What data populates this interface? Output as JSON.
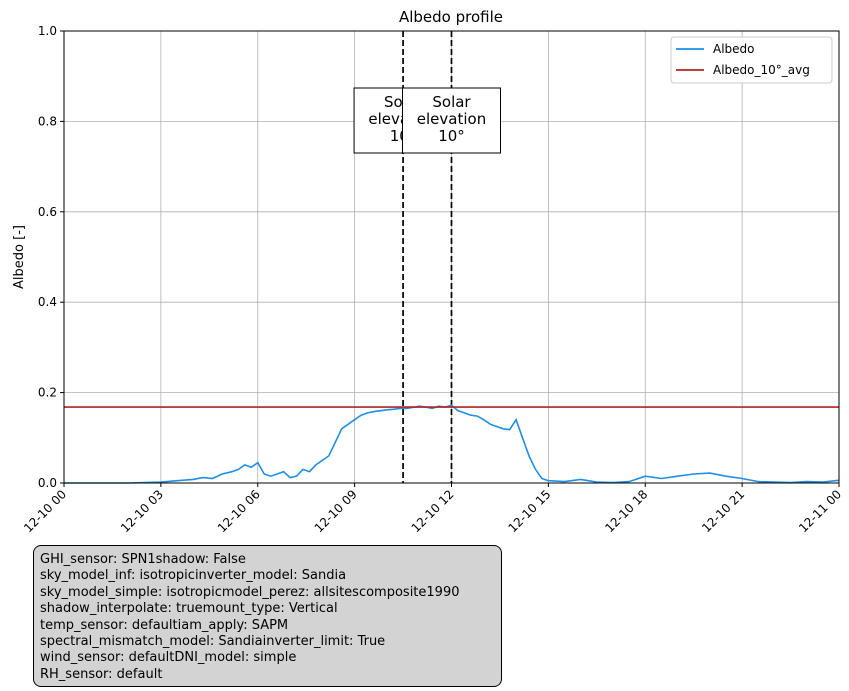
{
  "chart_data": {
    "type": "line",
    "title": "Albedo profile",
    "xlabel": "",
    "ylabel": "Albedo [-]",
    "xlim": [
      "12-10 00",
      "12-11 00"
    ],
    "ylim": [
      0,
      1.0
    ],
    "grid": true,
    "legend_position": "top-right",
    "x_tick_labels": [
      "12-10 00",
      "12-10 03",
      "12-10 06",
      "12-10 09",
      "12-10 12",
      "12-10 15",
      "12-10 18",
      "12-10 21",
      "12-11 00"
    ],
    "y_tick_labels": [
      "0.0",
      "0.2",
      "0.4",
      "0.6",
      "0.8",
      "1.0"
    ],
    "y_ticks": [
      0,
      0.2,
      0.4,
      0.6,
      0.8,
      1.0
    ],
    "series": [
      {
        "name": "Albedo",
        "color": "#1f8fe6",
        "x_hours": [
          0,
          1,
          2,
          3,
          3.5,
          4,
          4.3,
          4.6,
          4.9,
          5.2,
          5.4,
          5.6,
          5.8,
          6.0,
          6.2,
          6.4,
          6.6,
          6.8,
          7.0,
          7.2,
          7.4,
          7.6,
          7.8,
          8.0,
          8.2,
          8.4,
          8.6,
          8.8,
          9.0,
          9.2,
          9.4,
          9.6,
          9.8,
          10.0,
          10.2,
          10.4,
          10.6,
          10.8,
          11.0,
          11.2,
          11.4,
          11.6,
          11.8,
          12.0,
          12.2,
          12.4,
          12.6,
          12.8,
          13.0,
          13.2,
          13.4,
          13.6,
          13.8,
          14.0,
          14.2,
          14.4,
          14.6,
          14.8,
          15.0,
          15.5,
          16,
          16.5,
          17,
          17.5,
          18,
          18.5,
          19,
          19.5,
          20,
          20.5,
          21,
          21.5,
          22,
          22.5,
          23,
          23.5,
          24
        ],
        "values": [
          0.0,
          0.0,
          0.0,
          0.002,
          0.005,
          0.008,
          0.012,
          0.01,
          0.02,
          0.025,
          0.03,
          0.04,
          0.035,
          0.045,
          0.02,
          0.015,
          0.02,
          0.025,
          0.012,
          0.015,
          0.03,
          0.025,
          0.04,
          0.05,
          0.06,
          0.09,
          0.12,
          0.13,
          0.14,
          0.15,
          0.155,
          0.158,
          0.16,
          0.162,
          0.163,
          0.165,
          0.165,
          0.167,
          0.17,
          0.168,
          0.165,
          0.17,
          0.168,
          0.172,
          0.16,
          0.155,
          0.15,
          0.148,
          0.14,
          0.13,
          0.125,
          0.12,
          0.118,
          0.14,
          0.1,
          0.06,
          0.03,
          0.01,
          0.005,
          0.003,
          0.008,
          0.002,
          0.001,
          0.003,
          0.015,
          0.01,
          0.015,
          0.02,
          0.022,
          0.015,
          0.01,
          0.003,
          0.002,
          0.001,
          0.003,
          0.002,
          0.006
        ]
      },
      {
        "name": "Albedo_10°_avg",
        "color": "#b22222",
        "value": 0.168
      }
    ],
    "vertical_lines_hours": [
      10.5,
      12.0
    ],
    "annotations": [
      {
        "lines": [
          "Solar",
          "elevation",
          "10°"
        ]
      },
      {
        "lines": [
          "Solar",
          "elevation",
          "10°"
        ]
      }
    ]
  },
  "info_box": {
    "lines": [
      "GHI_sensor: SPN1\u001fshadow: False",
      "sky_model_inf: isotropic\u001finverter_model: Sandia",
      "sky_model_simple: isotropic\u001fmodel_perez: allsitescomposite1990",
      "shadow_interpolate: true\u001fmount_type: Vertical",
      "temp_sensor: default\u001fiam_apply: SAPM",
      "spectral_mismatch_model: Sandia\u001finverter_limit: True",
      "wind_sensor: default\u001fDNI_model: simple",
      "RH_sensor: default"
    ]
  }
}
